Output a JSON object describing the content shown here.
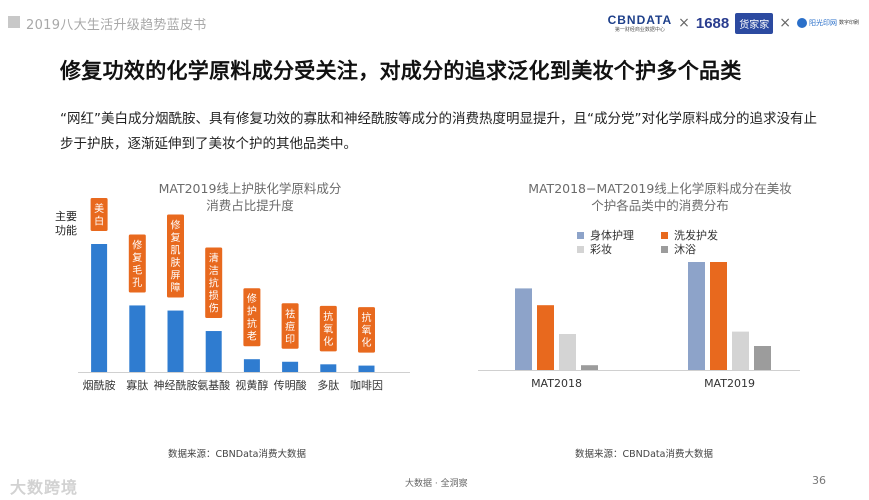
{
  "header": {
    "report_title": "2019八大生活升级趋势蓝皮书"
  },
  "logos": {
    "cbn": "CBNDATA",
    "cbn_sub": "第一财经商业数据中心",
    "times": "×",
    "alibaba": "1688",
    "zhijiajia": "货家家",
    "last_title": "阳光印网",
    "last_sub": "数字印刷"
  },
  "main": {
    "title": "修复功效的化学原料成分受关注，对成分的追求泛化到美妆个护多个品类",
    "description": "“网红”美白成分烟酰胺、具有修复功效的寡肽和神经酰胺等成分的消费热度明显提升，且“成分党”对化学原料成分的追求没有止步于护肤，逐渐延伸到了美妆个护的其他品类中。"
  },
  "left_chart": {
    "title_line1": "MAT2019线上护肤化学原料成分",
    "title_line2": "消费占比提升度",
    "function_label_line1": "主要",
    "function_label_line2": "功能",
    "source": "数据来源：CBNData消费大数据"
  },
  "right_chart": {
    "title_line1": "MAT2018−MAT2019线上化学原料成分在美妆",
    "title_line2": "个护各品类中的消费分布",
    "source": "数据来源：CBNData消费大数据"
  },
  "footer": {
    "tagline": "大数据 · 全洞察",
    "page": "36",
    "brand": "大数跨境"
  },
  "colors": {
    "blue": "#2f7cd0",
    "orange": "#e8691e",
    "steel": "#8da3c9",
    "light_gray": "#d4d4d4",
    "dark_gray": "#9c9c9c"
  },
  "chart_data": [
    {
      "type": "bar",
      "categories": [
        "烟酰胺",
        "寡肽",
        "神经酰胺",
        "氨基酸",
        "视黄醇",
        "传明酸",
        "多肽",
        "咖啡因"
      ],
      "values": [
        100,
        52,
        48,
        32,
        10,
        8,
        6,
        5
      ],
      "function_tags": [
        "美白",
        "修复毛孔",
        "修复肌肤屏障",
        "清洁抗损伤",
        "修护抗老",
        "祛痘印",
        "抗氧化",
        "抗氧化"
      ],
      "ylim": [
        0,
        110
      ],
      "grid": false,
      "color": "#2f7cd0"
    },
    {
      "type": "bar",
      "categories": [
        "MAT2018",
        "MAT2019"
      ],
      "series": [
        {
          "name": "身体护理",
          "values": [
            68,
            90
          ],
          "color": "#8da3c9"
        },
        {
          "name": "洗发护发",
          "values": [
            54,
            90
          ],
          "color": "#e8691e"
        },
        {
          "name": "彩妆",
          "values": [
            30,
            32
          ],
          "color": "#d4d4d4"
        },
        {
          "name": "沐浴",
          "values": [
            4,
            20
          ],
          "color": "#9c9c9c"
        }
      ],
      "ylim": [
        0,
        100
      ],
      "legend": "top-left",
      "grid": false
    }
  ]
}
